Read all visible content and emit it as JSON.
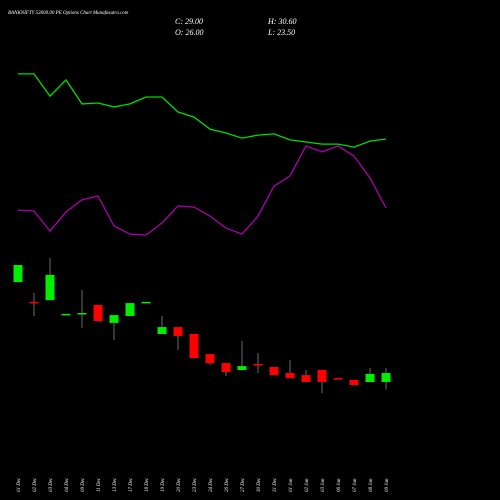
{
  "chart_data": {
    "type": "candlestick",
    "title": "BANKNIFTY 53000.00 PE Options Chart Munafasutra.com",
    "annotations": [
      "C: 29.00",
      "H: 30.60",
      "O: 26.00",
      "L: 23.50"
    ],
    "categories": [
      "01 Dec",
      "02 Dec",
      "03 Dec",
      "04 Dec",
      "09 Dec",
      "11 Dec",
      "13 Dec",
      "17 Dec",
      "18 Dec",
      "19 Dec",
      "20 Dec",
      "23 Dec",
      "24 Dec",
      "26 Dec",
      "27 Dec",
      "30 Dec",
      "31 Dec",
      "01 Jan",
      "02 Jan",
      "03 Jan",
      "06 Jan",
      "07 Jan",
      "08 Jan",
      "09 Jan"
    ],
    "open": [
      59.3,
      52.7,
      53.3,
      48.7,
      49,
      51.7,
      45.7,
      48,
      52.7,
      42,
      44.3,
      42,
      35.3,
      32.3,
      30,
      32,
      31,
      29,
      28.3,
      30,
      27.3,
      26.7,
      26,
      26
    ],
    "high": [
      65,
      55.7,
      67.3,
      48.7,
      56.7,
      51.7,
      48.3,
      52.3,
      52.7,
      48,
      44.3,
      42,
      35.3,
      32.3,
      39.7,
      35.7,
      31,
      33.3,
      30,
      30,
      27.3,
      26.7,
      30.7,
      30.6
    ],
    "low": [
      59.3,
      48,
      53.3,
      48.7,
      44,
      46.3,
      40,
      48,
      52.7,
      42,
      36.7,
      34,
      31.7,
      28,
      30,
      29,
      28.3,
      27.3,
      26,
      22.3,
      27,
      25,
      26,
      23.5
    ],
    "close": [
      65,
      52.3,
      61.7,
      48.7,
      49,
      46.3,
      48.3,
      52.3,
      52.7,
      44.3,
      41.3,
      34,
      32.3,
      29.3,
      31.3,
      31.7,
      28.3,
      27.3,
      26,
      26,
      27,
      25,
      28.7,
      29
    ],
    "up_color": "#00ee00",
    "down_color": "#ff0000",
    "lines": [
      {
        "color": "#00dd00",
        "values": [
          128.7,
          128.7,
          121.3,
          126.7,
          118.7,
          119,
          117.7,
          118.7,
          121,
          121,
          116,
          114.3,
          110.3,
          109,
          107.3,
          108.3,
          108.7,
          106.7,
          106,
          105.3,
          105.3,
          104.3,
          106.3,
          107
        ]
      },
      {
        "color": "#aa00aa",
        "values": [
          83.3,
          83,
          76.3,
          82.7,
          86.7,
          88,
          78,
          75.3,
          75,
          79,
          84.7,
          84.3,
          81.3,
          77.3,
          75.3,
          81.3,
          91.3,
          94.7,
          104.7,
          102.7,
          104.7,
          101.3,
          94,
          84
        ]
      }
    ],
    "ylim": [
      10,
      140
    ],
    "grid": false
  }
}
